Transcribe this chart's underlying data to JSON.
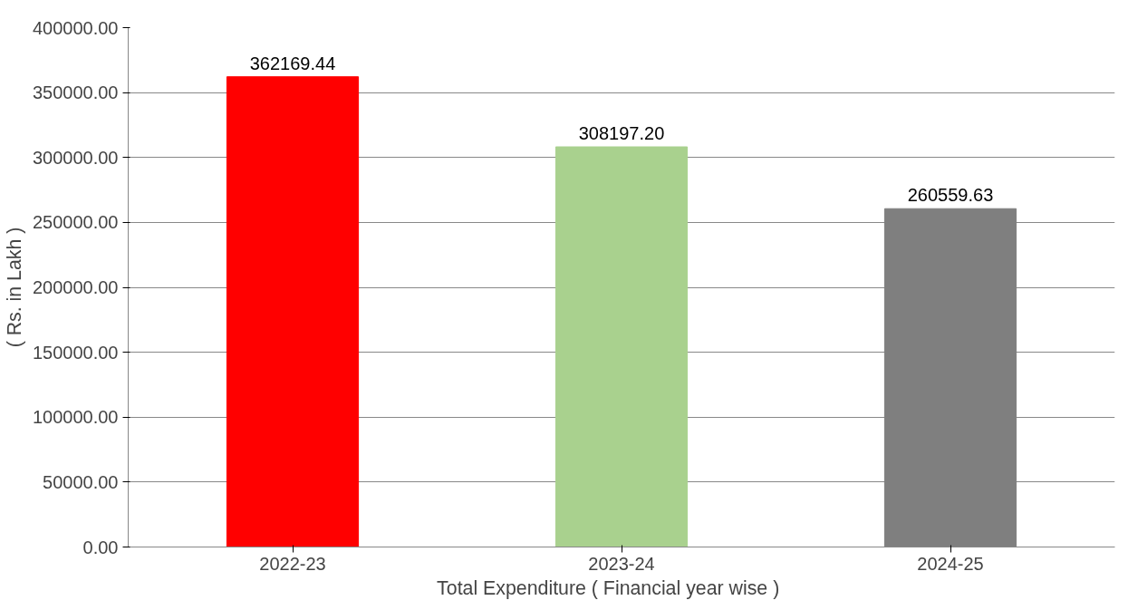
{
  "chart_data": {
    "type": "bar",
    "xlabel": "Total  Expenditure    ( Financial year  wise )",
    "ylabel": "( Rs. in Lakh )",
    "categories": [
      "2022-23",
      "2023-24",
      "2024-25"
    ],
    "values": [
      362169.44,
      308197.2,
      260559.63
    ],
    "colors": [
      "#ff0000",
      "#a9d18e",
      "#7f7f7f"
    ],
    "value_labels": [
      "362169.44",
      "308197.20",
      "260559.63"
    ],
    "ylim": [
      0,
      400000
    ],
    "yticks": [
      {
        "value": 0,
        "label": "0.00"
      },
      {
        "value": 50000,
        "label": "50000.00"
      },
      {
        "value": 100000,
        "label": "100000.00"
      },
      {
        "value": 150000,
        "label": "150000.00"
      },
      {
        "value": 200000,
        "label": "200000.00"
      },
      {
        "value": 250000,
        "label": "250000.00"
      },
      {
        "value": 300000,
        "label": "300000.00"
      },
      {
        "value": 350000,
        "label": "350000.00"
      },
      {
        "value": 400000,
        "label": "400000.00"
      }
    ],
    "grid": "y"
  }
}
